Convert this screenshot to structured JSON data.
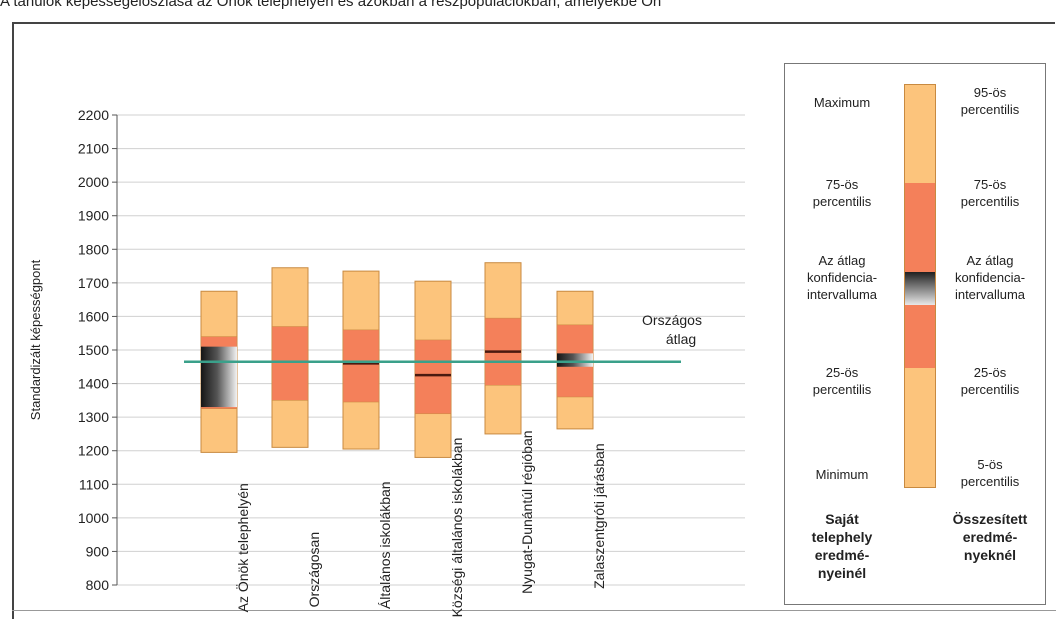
{
  "header": {
    "title": "A tanulók képességeloszlása az Önök telephelyén és azokban a részpopulációkban, amelyekbe Ön"
  },
  "chart_data": {
    "type": "box",
    "ylabel": "Standardizált képességpont",
    "ylim": [
      800,
      2200
    ],
    "yticks": [
      800,
      900,
      1000,
      1100,
      1200,
      1300,
      1400,
      1500,
      1600,
      1700,
      1800,
      1900,
      2000,
      2100,
      2200
    ],
    "national_average": 1465,
    "national_average_label_line1": "Országos",
    "national_average_label_line2": "átlag",
    "categories": [
      {
        "label": "Az Önök telephelyén",
        "p5": 1195,
        "p25": 1325,
        "ci_low": 1330,
        "ci_high": 1510,
        "p75": 1540,
        "p95": 1675
      },
      {
        "label": "Országosan",
        "p5": 1210,
        "p25": 1350,
        "mean": 1465,
        "p75": 1570,
        "p95": 1745
      },
      {
        "label": "Általános iskolákban",
        "p5": 1205,
        "p25": 1345,
        "mean": 1460,
        "p75": 1560,
        "p95": 1735
      },
      {
        "label": "Községi általános iskolákban",
        "p5": 1180,
        "p25": 1310,
        "mean": 1425,
        "p75": 1530,
        "p95": 1705
      },
      {
        "label": "Nyugat-Dunántúl régióban",
        "p5": 1250,
        "p25": 1395,
        "mean": 1495,
        "p75": 1595,
        "p95": 1760
      },
      {
        "label": "Zalaszentgróti járásban",
        "p5": 1265,
        "p25": 1360,
        "ci_low": 1450,
        "ci_high": 1490,
        "p75": 1575,
        "p95": 1675
      }
    ],
    "colors": {
      "outer": "#fcc47c",
      "inner": "#f4805a",
      "border": "#c88a40",
      "avg_line": "#3aa08a",
      "grid": "#d0d0d0",
      "mean_line": "#4a1a10"
    }
  },
  "legend": {
    "left": {
      "maximum": "Maximum",
      "p75_line1": "75-ös",
      "p75_line2": "percentilis",
      "ci_line1": "Az átlag",
      "ci_line2": "konfidencia-",
      "ci_line3": "intervalluma",
      "p25_line1": "25-ös",
      "p25_line2": "percentilis",
      "minimum": "Minimum",
      "caption_line1": "Saját",
      "caption_line2": "telephely",
      "caption_line3": "eredmé-",
      "caption_line4": "nyeinél"
    },
    "right": {
      "p95_line1": "95-ös",
      "p95_line2": "percentilis",
      "p75_line1": "75-ös",
      "p75_line2": "percentilis",
      "ci_line1": "Az átlag",
      "ci_line2": "konfidencia-",
      "ci_line3": "intervalluma",
      "p25_line1": "25-ös",
      "p25_line2": "percentilis",
      "p5_line1": "5-ös",
      "p5_line2": "percentilis",
      "caption_line1": "Összesített",
      "caption_line2": "eredmé-",
      "caption_line3": "nyeknél"
    }
  }
}
